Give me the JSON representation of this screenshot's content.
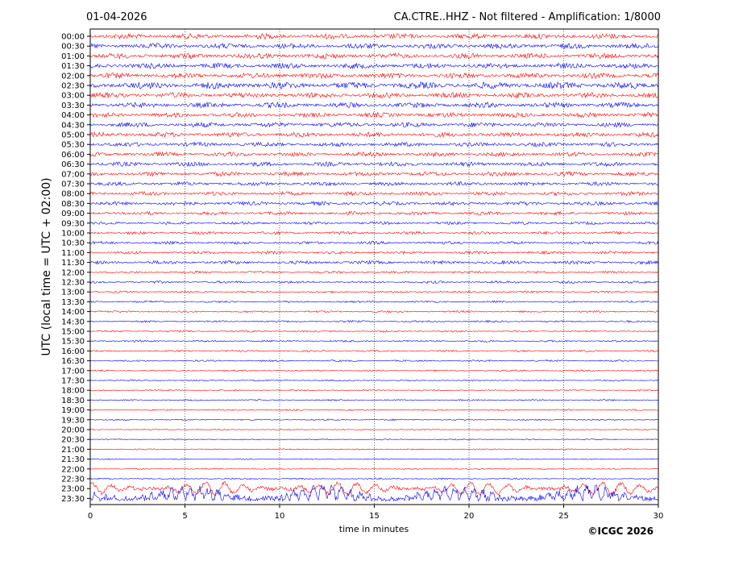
{
  "header": {
    "date": "01-04-2026",
    "title": "CA.CTRE..HHZ - Not filtered - Amplification: 1/8000"
  },
  "footer": {
    "copyright": "©ICGC 2026"
  },
  "colors": {
    "trace_even": "#ff0000",
    "trace_odd": "#0000ff",
    "grid": "#000000",
    "background": "#ffffff"
  },
  "chart_data": {
    "type": "line",
    "title": "CA.CTRE..HHZ - Not filtered - Amplification: 1/8000",
    "xlabel": "time in minutes",
    "ylabel": "UTC (local time = UTC + 02:00)",
    "xlim": [
      0,
      30
    ],
    "x_ticks": [
      "0",
      "5",
      "10",
      "15",
      "20",
      "25",
      "30"
    ],
    "grid": "vertical dotted lines at every x tick",
    "rows": [
      "00:00",
      "00:30",
      "01:00",
      "01:30",
      "02:00",
      "02:30",
      "03:00",
      "03:30",
      "04:00",
      "04:30",
      "05:00",
      "05:30",
      "06:00",
      "06:30",
      "07:00",
      "07:30",
      "08:00",
      "08:30",
      "09:00",
      "09:30",
      "10:00",
      "10:30",
      "11:00",
      "11:30",
      "12:00",
      "12:30",
      "13:00",
      "13:30",
      "14:00",
      "14:30",
      "15:00",
      "15:30",
      "16:00",
      "16:30",
      "17:00",
      "17:30",
      "18:00",
      "18:30",
      "19:00",
      "19:30",
      "20:00",
      "20:30",
      "21:00",
      "21:30",
      "22:00",
      "22:30",
      "23:00",
      "23:30"
    ],
    "row_colors_alternate": [
      "red",
      "blue"
    ],
    "relative_amplitude": [
      0.55,
      0.55,
      0.55,
      0.55,
      0.55,
      0.7,
      0.55,
      0.55,
      0.5,
      0.5,
      0.5,
      0.45,
      0.45,
      0.45,
      0.45,
      0.4,
      0.4,
      0.4,
      0.35,
      0.3,
      0.3,
      0.3,
      0.3,
      0.35,
      0.25,
      0.25,
      0.2,
      0.2,
      0.2,
      0.2,
      0.18,
      0.2,
      0.18,
      0.18,
      0.15,
      0.15,
      0.15,
      0.15,
      0.15,
      0.15,
      0.12,
      0.12,
      0.12,
      0.12,
      0.12,
      0.15,
      1.6,
      3.5
    ]
  }
}
